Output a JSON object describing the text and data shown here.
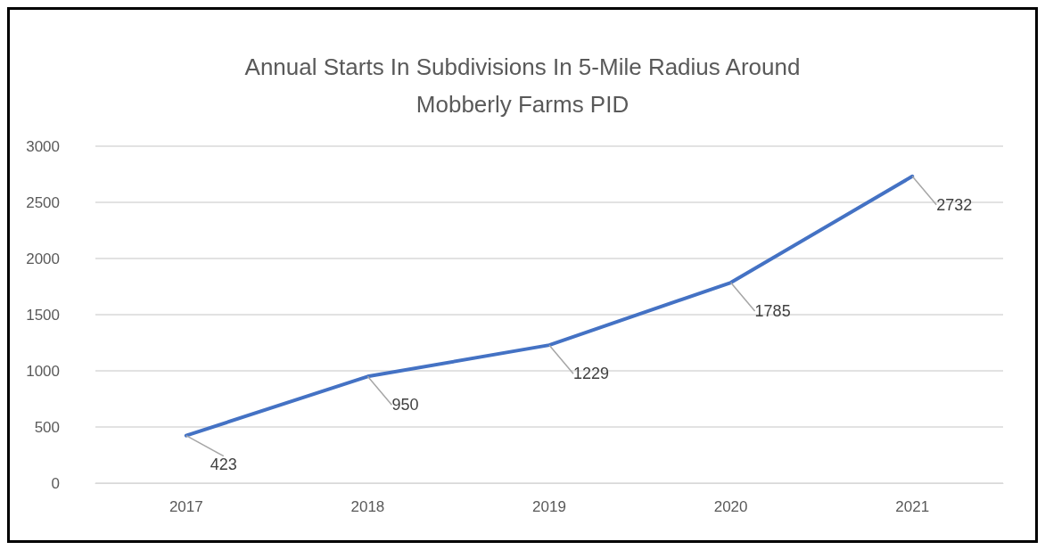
{
  "chart_data": {
    "type": "line",
    "title": "Annual Starts In Subdivisions In 5-Mile Radius Around\nMobberly Farms PID",
    "categories": [
      "2017",
      "2018",
      "2019",
      "2020",
      "2021"
    ],
    "values": [
      423,
      950,
      1229,
      1785,
      2732
    ],
    "color": "#4472c4",
    "ylim": [
      0,
      3000
    ],
    "yticks": [
      0,
      500,
      1000,
      1500,
      2000,
      2500,
      3000
    ],
    "grid": "y",
    "data_labels": true,
    "marker": "none",
    "line_style": "solid"
  }
}
